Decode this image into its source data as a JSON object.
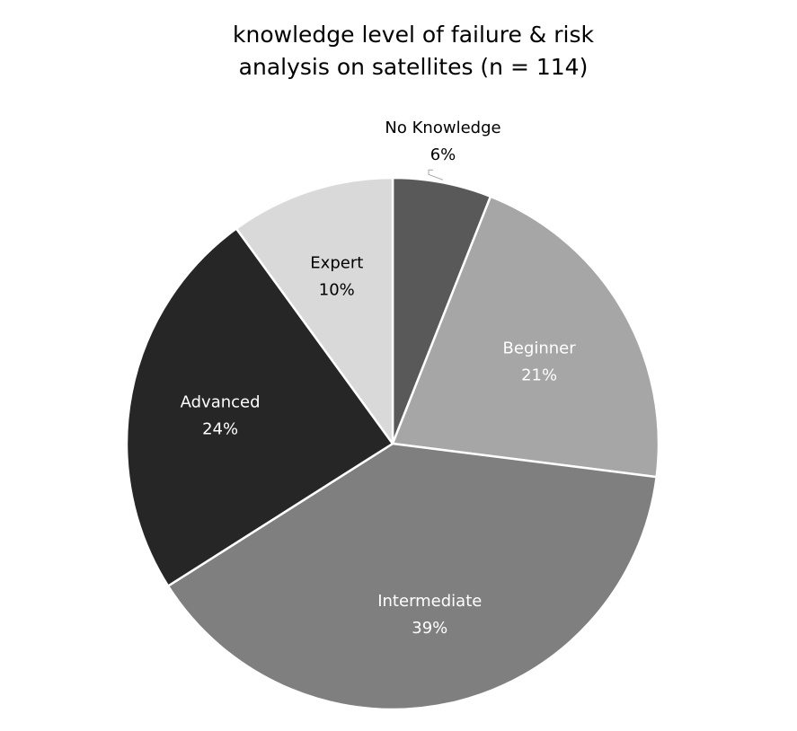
{
  "chart_data": {
    "type": "pie",
    "title_lines": [
      "knowledge level of failure & risk",
      "analysis on satellites (n =  114)"
    ],
    "categories": [
      "No Knowledge",
      "Beginner",
      "Intermediate",
      "Advanced",
      "Expert"
    ],
    "values": [
      6,
      21,
      39,
      24,
      10
    ],
    "value_labels": [
      "6%",
      "21%",
      "39%",
      "24%",
      "10%"
    ],
    "unit": "%",
    "colors": [
      "#595959",
      "#a6a6a6",
      "#7f7f7f",
      "#262626",
      "#d9d9d9"
    ],
    "label_colors": [
      "#000000",
      "#ffffff",
      "#ffffff",
      "#ffffff",
      "#000000"
    ],
    "start_angle_deg": 0,
    "direction": "clockwise",
    "legend": "none"
  }
}
